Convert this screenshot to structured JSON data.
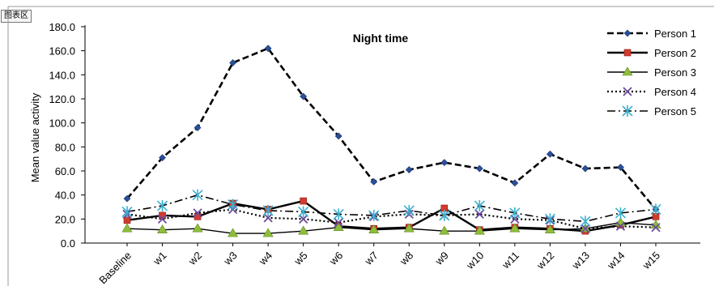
{
  "window": {
    "badge_label": "图表区"
  },
  "chart_data": {
    "type": "line",
    "title": "Night time",
    "xlabel": "",
    "ylabel": "Mean value activity",
    "ylim": [
      0,
      180
    ],
    "ytick_step": 20,
    "ytick_decimals": 1,
    "grid": false,
    "legend_position": "top-right",
    "categories": [
      "Baseline",
      "w1",
      "w2",
      "w3",
      "w4",
      "w5",
      "w6",
      "w7",
      "w8",
      "w9",
      "w10",
      "w11",
      "w12",
      "w13",
      "w14",
      "w15"
    ],
    "series": [
      {
        "name": "Person 1",
        "color": "#000000",
        "dash": "8,4",
        "stroke_width": 2.6,
        "marker": "diamond",
        "marker_color": "#2a4f9a",
        "values": [
          37,
          71,
          96,
          150,
          162,
          122,
          89,
          51,
          61,
          67,
          62,
          50,
          74,
          62,
          63,
          28
        ]
      },
      {
        "name": "Person 2",
        "color": "#000000",
        "dash": "",
        "stroke_width": 2.4,
        "marker": "square",
        "marker_color": "#d23b2e",
        "values": [
          19,
          23,
          22,
          33,
          28,
          35,
          14,
          12,
          13,
          29,
          11,
          13,
          12,
          10,
          15,
          22
        ]
      },
      {
        "name": "Person 3",
        "color": "#000000",
        "dash": "",
        "stroke_width": 1.4,
        "marker": "triangle",
        "marker_color": "#8ebd3c",
        "values": [
          12,
          11,
          12,
          8,
          8,
          10,
          13,
          11,
          12,
          10,
          10,
          12,
          11,
          12,
          17,
          15
        ]
      },
      {
        "name": "Person 4",
        "color": "#000000",
        "dash": "2,3",
        "stroke_width": 2.2,
        "marker": "x",
        "marker_color": "#6a4a9a",
        "values": [
          24,
          20,
          25,
          28,
          21,
          20,
          17,
          22,
          24,
          23,
          24,
          20,
          19,
          12,
          14,
          13
        ]
      },
      {
        "name": "Person 5",
        "color": "#000000",
        "dash": "10,4,2,4",
        "stroke_width": 1.6,
        "marker": "asterisk",
        "marker_color": "#3bb0cf",
        "values": [
          26,
          31,
          40,
          32,
          27,
          26,
          24,
          23,
          27,
          23,
          31,
          25,
          20,
          18,
          25,
          28
        ]
      }
    ]
  }
}
